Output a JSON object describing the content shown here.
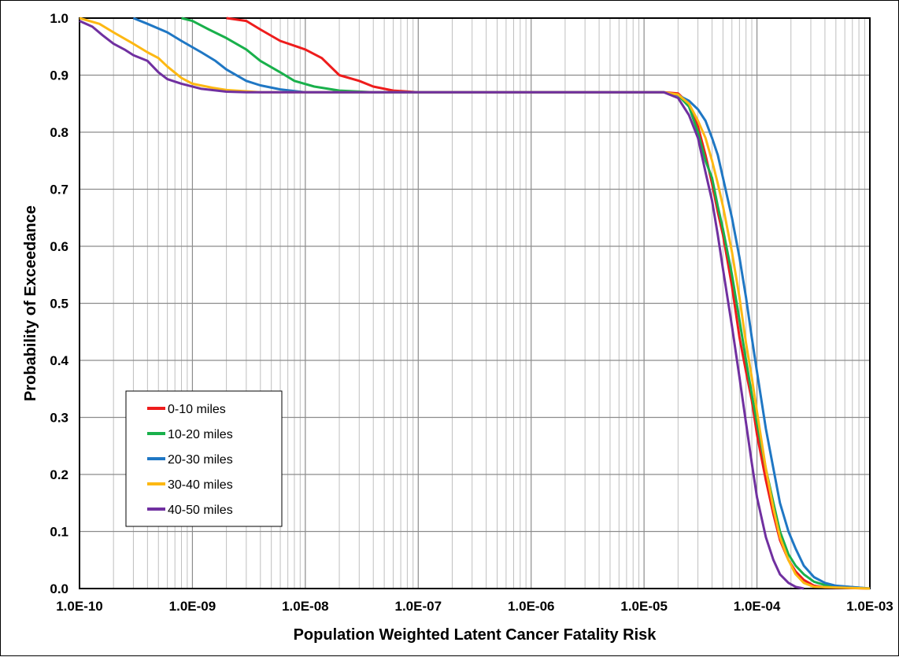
{
  "chart_data": {
    "type": "line",
    "title": "",
    "xlabel": "Population Weighted Latent Cancer Fatality Risk",
    "ylabel": "Probability of Exceedance",
    "x_scale": "log",
    "xlim": [
      1e-10,
      0.001
    ],
    "ylim": [
      0,
      1
    ],
    "x_tick_labels": [
      "1.0E-10",
      "1.0E-09",
      "1.0E-08",
      "1.0E-07",
      "1.0E-06",
      "1.0E-05",
      "1.0E-04",
      "1.0E-03"
    ],
    "y_tick_labels": [
      "0.0",
      "0.1",
      "0.2",
      "0.3",
      "0.4",
      "0.5",
      "0.6",
      "0.7",
      "0.8",
      "0.9",
      "1.0"
    ],
    "grid": true,
    "legend_position": "bottom-left",
    "series": [
      {
        "name": "0-10 miles",
        "color": "#ee1c1c",
        "points": [
          [
            2e-09,
            1.0
          ],
          [
            3e-09,
            0.995
          ],
          [
            4e-09,
            0.98
          ],
          [
            6e-09,
            0.96
          ],
          [
            1e-08,
            0.945
          ],
          [
            1.4e-08,
            0.93
          ],
          [
            2e-08,
            0.9
          ],
          [
            3e-08,
            0.89
          ],
          [
            4e-08,
            0.88
          ],
          [
            6e-08,
            0.873
          ],
          [
            1e-07,
            0.87
          ],
          [
            1e-06,
            0.87
          ],
          [
            1.5e-05,
            0.87
          ],
          [
            2e-05,
            0.868
          ],
          [
            2.5e-05,
            0.85
          ],
          [
            3e-05,
            0.81
          ],
          [
            3.5e-05,
            0.76
          ],
          [
            4e-05,
            0.71
          ],
          [
            4.5e-05,
            0.66
          ],
          [
            5e-05,
            0.62
          ],
          [
            6e-05,
            0.53
          ],
          [
            7e-05,
            0.44
          ],
          [
            8e-05,
            0.38
          ],
          [
            9e-05,
            0.33
          ],
          [
            0.0001,
            0.27
          ],
          [
            0.00012,
            0.19
          ],
          [
            0.00014,
            0.13
          ],
          [
            0.00016,
            0.085
          ],
          [
            0.00019,
            0.05
          ],
          [
            0.00022,
            0.03
          ],
          [
            0.00026,
            0.015
          ],
          [
            0.00032,
            0.005
          ],
          [
            0.0004,
            0.002
          ],
          [
            0.001,
            0.0
          ]
        ]
      },
      {
        "name": "10-20 miles",
        "color": "#19b04b",
        "points": [
          [
            8e-10,
            1.0
          ],
          [
            1e-09,
            0.995
          ],
          [
            1.4e-09,
            0.98
          ],
          [
            2e-09,
            0.965
          ],
          [
            3e-09,
            0.945
          ],
          [
            4e-09,
            0.925
          ],
          [
            6e-09,
            0.905
          ],
          [
            8e-09,
            0.89
          ],
          [
            1.2e-08,
            0.88
          ],
          [
            2e-08,
            0.873
          ],
          [
            4e-08,
            0.87
          ],
          [
            1e-06,
            0.87
          ],
          [
            1.5e-05,
            0.87
          ],
          [
            2e-05,
            0.865
          ],
          [
            2.5e-05,
            0.845
          ],
          [
            3e-05,
            0.8
          ],
          [
            3.5e-05,
            0.75
          ],
          [
            4e-05,
            0.72
          ],
          [
            4.5e-05,
            0.67
          ],
          [
            5e-05,
            0.63
          ],
          [
            6e-05,
            0.55
          ],
          [
            7e-05,
            0.47
          ],
          [
            8e-05,
            0.4
          ],
          [
            9e-05,
            0.34
          ],
          [
            0.0001,
            0.29
          ],
          [
            0.00012,
            0.21
          ],
          [
            0.00014,
            0.15
          ],
          [
            0.00016,
            0.1
          ],
          [
            0.00019,
            0.06
          ],
          [
            0.00022,
            0.04
          ],
          [
            0.00026,
            0.025
          ],
          [
            0.00032,
            0.012
          ],
          [
            0.0004,
            0.006
          ],
          [
            0.001,
            0.0
          ]
        ]
      },
      {
        "name": "20-30 miles",
        "color": "#1f77c4",
        "points": [
          [
            3e-10,
            1.0
          ],
          [
            4e-10,
            0.99
          ],
          [
            6e-10,
            0.975
          ],
          [
            8e-10,
            0.96
          ],
          [
            1.2e-09,
            0.94
          ],
          [
            1.6e-09,
            0.925
          ],
          [
            2e-09,
            0.91
          ],
          [
            3e-09,
            0.89
          ],
          [
            4e-09,
            0.882
          ],
          [
            6e-09,
            0.875
          ],
          [
            1e-08,
            0.87
          ],
          [
            1e-06,
            0.87
          ],
          [
            1.5e-05,
            0.87
          ],
          [
            2e-05,
            0.865
          ],
          [
            2.5e-05,
            0.855
          ],
          [
            3e-05,
            0.84
          ],
          [
            3.5e-05,
            0.82
          ],
          [
            4e-05,
            0.79
          ],
          [
            4.5e-05,
            0.76
          ],
          [
            5e-05,
            0.72
          ],
          [
            6e-05,
            0.65
          ],
          [
            7e-05,
            0.58
          ],
          [
            8e-05,
            0.51
          ],
          [
            9e-05,
            0.44
          ],
          [
            0.0001,
            0.38
          ],
          [
            0.00012,
            0.28
          ],
          [
            0.00014,
            0.21
          ],
          [
            0.00016,
            0.15
          ],
          [
            0.00019,
            0.1
          ],
          [
            0.00022,
            0.07
          ],
          [
            0.00026,
            0.04
          ],
          [
            0.00032,
            0.02
          ],
          [
            0.0004,
            0.01
          ],
          [
            0.0005,
            0.005
          ],
          [
            0.001,
            0.0
          ]
        ]
      },
      {
        "name": "30-40 miles",
        "color": "#fdb813",
        "points": [
          [
            1e-10,
            1.0
          ],
          [
            1.5e-10,
            0.99
          ],
          [
            2e-10,
            0.975
          ],
          [
            3e-10,
            0.955
          ],
          [
            4e-10,
            0.94
          ],
          [
            5e-10,
            0.93
          ],
          [
            6e-10,
            0.915
          ],
          [
            8e-10,
            0.895
          ],
          [
            1e-09,
            0.885
          ],
          [
            1.5e-09,
            0.878
          ],
          [
            2e-09,
            0.874
          ],
          [
            4e-09,
            0.87
          ],
          [
            1e-06,
            0.87
          ],
          [
            1.5e-05,
            0.87
          ],
          [
            2e-05,
            0.866
          ],
          [
            2.5e-05,
            0.85
          ],
          [
            3e-05,
            0.82
          ],
          [
            3.5e-05,
            0.79
          ],
          [
            4e-05,
            0.75
          ],
          [
            4.5e-05,
            0.71
          ],
          [
            5e-05,
            0.67
          ],
          [
            6e-05,
            0.59
          ],
          [
            7e-05,
            0.51
          ],
          [
            8e-05,
            0.43
          ],
          [
            9e-05,
            0.37
          ],
          [
            0.0001,
            0.31
          ],
          [
            0.00012,
            0.21
          ],
          [
            0.00014,
            0.14
          ],
          [
            0.00016,
            0.09
          ],
          [
            0.00019,
            0.05
          ],
          [
            0.00022,
            0.025
          ],
          [
            0.00026,
            0.01
          ],
          [
            0.00032,
            0.003
          ],
          [
            0.001,
            0.0
          ]
        ]
      },
      {
        "name": "40-50 miles",
        "color": "#7030a0",
        "points": [
          [
            1e-10,
            0.995
          ],
          [
            1.3e-10,
            0.985
          ],
          [
            1.6e-10,
            0.97
          ],
          [
            2e-10,
            0.955
          ],
          [
            2.5e-10,
            0.945
          ],
          [
            3e-10,
            0.935
          ],
          [
            4e-10,
            0.925
          ],
          [
            5e-10,
            0.905
          ],
          [
            6e-10,
            0.893
          ],
          [
            8e-10,
            0.885
          ],
          [
            1.2e-09,
            0.876
          ],
          [
            2e-09,
            0.871
          ],
          [
            3e-09,
            0.87
          ],
          [
            1e-06,
            0.87
          ],
          [
            1.5e-05,
            0.87
          ],
          [
            2e-05,
            0.86
          ],
          [
            2.5e-05,
            0.83
          ],
          [
            3e-05,
            0.79
          ],
          [
            3.5e-05,
            0.73
          ],
          [
            4e-05,
            0.68
          ],
          [
            4.5e-05,
            0.62
          ],
          [
            5e-05,
            0.56
          ],
          [
            6e-05,
            0.46
          ],
          [
            7e-05,
            0.37
          ],
          [
            8e-05,
            0.29
          ],
          [
            9e-05,
            0.22
          ],
          [
            0.0001,
            0.16
          ],
          [
            0.00012,
            0.09
          ],
          [
            0.00014,
            0.05
          ],
          [
            0.00016,
            0.025
          ],
          [
            0.00019,
            0.01
          ],
          [
            0.00022,
            0.003
          ],
          [
            0.00026,
            0.0
          ]
        ]
      }
    ]
  }
}
